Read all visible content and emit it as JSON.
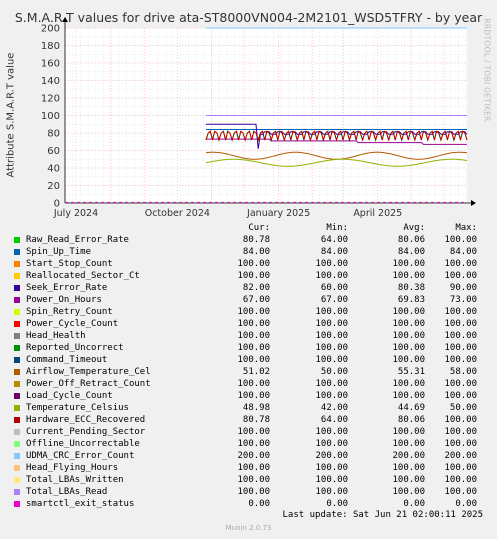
{
  "title": "S.M.A.R.T values for drive ata-ST8000VN004-2M2101_WSD5TFRY - by year",
  "side_label": "RRDTOOL / TOBI OETIKER",
  "legend_header": {
    "cur": "Cur:",
    "min": "Min:",
    "avg": "Avg:",
    "max": "Max:"
  },
  "last_update": "Last update: Sat Jun 21 02:00:11 2025",
  "footer": "Munin 2.0.73",
  "chart_data": {
    "type": "line",
    "title": "S.M.A.R.T values for drive ata-ST8000VN004-2M2101_WSD5TFRY - by year",
    "ylabel": "Attribute S.M.A.R.T value",
    "xlabel": "",
    "ylim": [
      0,
      200
    ],
    "yticks": [
      0,
      20,
      40,
      60,
      80,
      100,
      120,
      140,
      160,
      180,
      200
    ],
    "xticks": [
      "July 2024",
      "October 2024",
      "January 2025",
      "April 2025"
    ],
    "grid": true,
    "legend_position": "bottom",
    "data_start": "2024-10-27",
    "series": [
      {
        "name": "Raw_Read_Error_Rate",
        "color": "#00cc00",
        "cur": "80.78",
        "min": "64.00",
        "avg": "80.06",
        "max": "100.00",
        "style": "saw",
        "lo": 72,
        "hi": 82
      },
      {
        "name": "Spin_Up_Time",
        "color": "#0066b3",
        "cur": "84.00",
        "min": "84.00",
        "avg": "84.00",
        "max": "84.00",
        "style": "flat",
        "lo": 84,
        "hi": 84
      },
      {
        "name": "Start_Stop_Count",
        "color": "#ff8000",
        "cur": "100.00",
        "min": "100.00",
        "avg": "100.00",
        "max": "100.00",
        "style": "flat",
        "lo": 100,
        "hi": 100
      },
      {
        "name": "Reallocated_Sector_Ct",
        "color": "#ffcc00",
        "cur": "100.00",
        "min": "100.00",
        "avg": "100.00",
        "max": "100.00",
        "style": "flat",
        "lo": 100,
        "hi": 100
      },
      {
        "name": "Seek_Error_Rate",
        "color": "#330099",
        "cur": "82.00",
        "min": "60.00",
        "avg": "80.38",
        "max": "90.00",
        "style": "seek",
        "lo": 60,
        "hi": 90
      },
      {
        "name": "Power_On_Hours",
        "color": "#990099",
        "cur": "67.00",
        "min": "67.00",
        "avg": "69.83",
        "max": "73.00",
        "style": "step",
        "lo": 67,
        "hi": 73
      },
      {
        "name": "Spin_Retry_Count",
        "color": "#ccff00",
        "cur": "100.00",
        "min": "100.00",
        "avg": "100.00",
        "max": "100.00",
        "style": "flat",
        "lo": 100,
        "hi": 100
      },
      {
        "name": "Power_Cycle_Count",
        "color": "#ff0000",
        "cur": "100.00",
        "min": "100.00",
        "avg": "100.00",
        "max": "100.00",
        "style": "flat",
        "lo": 100,
        "hi": 100
      },
      {
        "name": "Head_Health",
        "color": "#808080",
        "cur": "100.00",
        "min": "100.00",
        "avg": "100.00",
        "max": "100.00",
        "style": "flat",
        "lo": 100,
        "hi": 100
      },
      {
        "name": "Reported_Uncorrect",
        "color": "#008f00",
        "cur": "100.00",
        "min": "100.00",
        "avg": "100.00",
        "max": "100.00",
        "style": "flat",
        "lo": 100,
        "hi": 100
      },
      {
        "name": "Command_Timeout",
        "color": "#00487d",
        "cur": "100.00",
        "min": "100.00",
        "avg": "100.00",
        "max": "100.00",
        "style": "flat",
        "lo": 100,
        "hi": 100
      },
      {
        "name": "Airflow_Temperature_Cel",
        "color": "#b35a00",
        "cur": "51.02",
        "min": "50.00",
        "avg": "55.31",
        "max": "58.00",
        "style": "wave",
        "lo": 50,
        "hi": 58
      },
      {
        "name": "Power_Off_Retract_Count",
        "color": "#b38f00",
        "cur": "100.00",
        "min": "100.00",
        "avg": "100.00",
        "max": "100.00",
        "style": "flat",
        "lo": 100,
        "hi": 100
      },
      {
        "name": "Load_Cycle_Count",
        "color": "#6b006b",
        "cur": "100.00",
        "min": "100.00",
        "avg": "100.00",
        "max": "100.00",
        "style": "flat",
        "lo": 100,
        "hi": 100
      },
      {
        "name": "Temperature_Celsius",
        "color": "#8fb300",
        "cur": "48.98",
        "min": "42.00",
        "avg": "44.69",
        "max": "50.00",
        "style": "wave2",
        "lo": 42,
        "hi": 50
      },
      {
        "name": "Hardware_ECC_Recovered",
        "color": "#b30000",
        "cur": "80.78",
        "min": "64.00",
        "avg": "80.06",
        "max": "100.00",
        "style": "saw",
        "lo": 72,
        "hi": 82
      },
      {
        "name": "Current_Pending_Sector",
        "color": "#bebebe",
        "cur": "100.00",
        "min": "100.00",
        "avg": "100.00",
        "max": "100.00",
        "style": "flat",
        "lo": 100,
        "hi": 100
      },
      {
        "name": "Offline_Uncorrectable",
        "color": "#80ff80",
        "cur": "100.00",
        "min": "100.00",
        "avg": "100.00",
        "max": "100.00",
        "style": "flat",
        "lo": 100,
        "hi": 100
      },
      {
        "name": "UDMA_CRC_Error_Count",
        "color": "#80c9ff",
        "cur": "200.00",
        "min": "200.00",
        "avg": "200.00",
        "max": "200.00",
        "style": "flat",
        "lo": 200,
        "hi": 200
      },
      {
        "name": "Head_Flying_Hours",
        "color": "#ffc080",
        "cur": "100.00",
        "min": "100.00",
        "avg": "100.00",
        "max": "100.00",
        "style": "flat",
        "lo": 100,
        "hi": 100
      },
      {
        "name": "Total_LBAs_Written",
        "color": "#ffe680",
        "cur": "100.00",
        "min": "100.00",
        "avg": "100.00",
        "max": "100.00",
        "style": "flat",
        "lo": 100,
        "hi": 100
      },
      {
        "name": "Total_LBAs_Read",
        "color": "#aa80ff",
        "cur": "100.00",
        "min": "100.00",
        "avg": "100.00",
        "max": "100.00",
        "style": "flat",
        "lo": 100,
        "hi": 100
      },
      {
        "name": "smartctl_exit_status",
        "color": "#ee00cc",
        "cur": "0.00",
        "min": "0.00",
        "avg": "0.00",
        "max": "0.00",
        "style": "zero",
        "lo": 0,
        "hi": 0
      }
    ]
  }
}
